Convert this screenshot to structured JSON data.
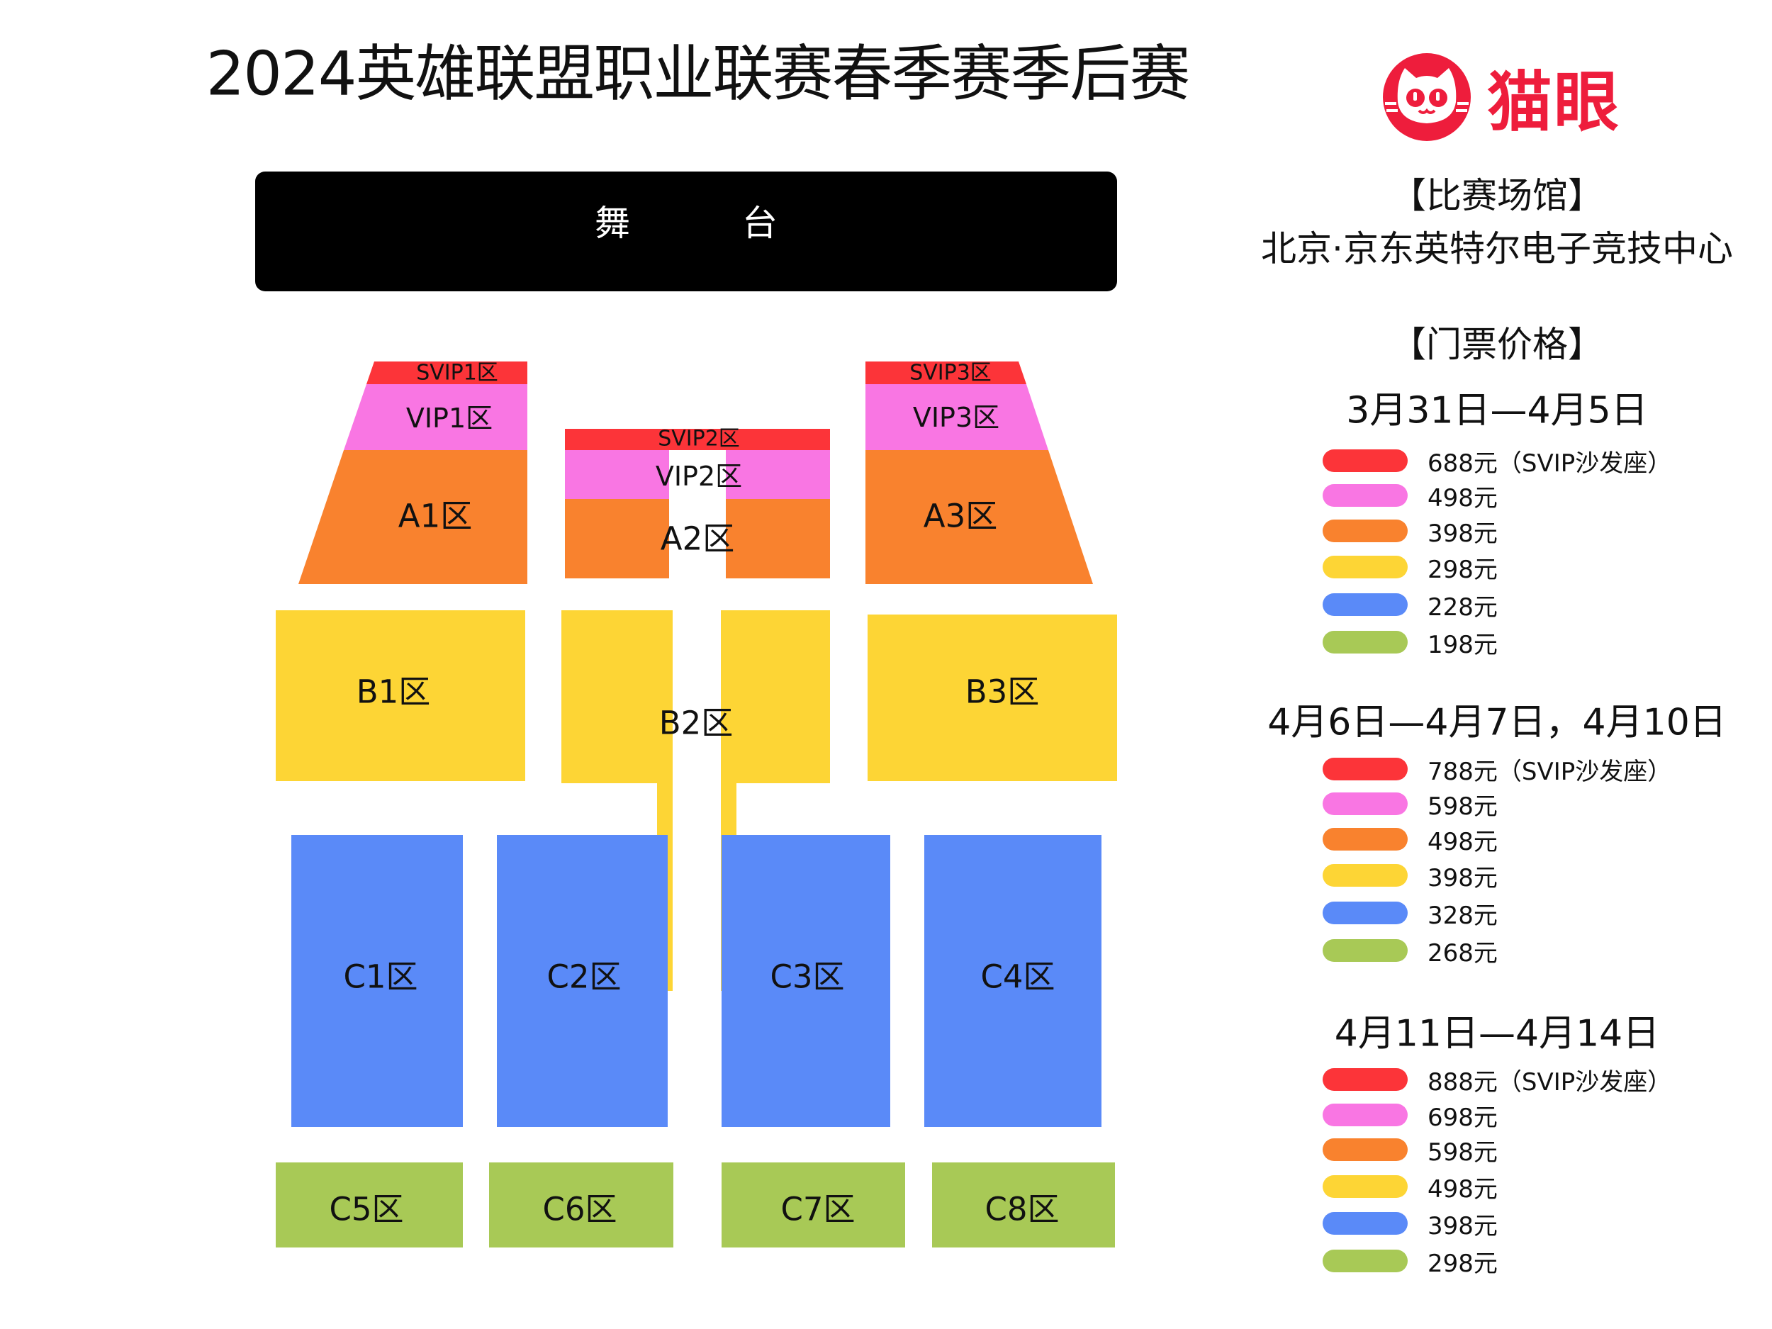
{
  "title": "2024英雄联盟职业联赛春季赛季后赛",
  "logo": {
    "text": "猫眼",
    "color": "#ee1d3c",
    "icon": "cat-face-icon"
  },
  "venue": {
    "heading": "【比赛场馆】",
    "name": "北京·京东英特尔电子竞技中心"
  },
  "stage": {
    "char1": "舞",
    "char2": "台"
  },
  "colors": {
    "svip": "#fc3439",
    "vip": "#f976e3",
    "a": "#f9822e",
    "b": "#fdd535",
    "c": "#5a8af8",
    "c_back": "#a8c956"
  },
  "sections": {
    "svip1": "SVIP1区",
    "vip1": "VIP1区",
    "a1": "A1区",
    "svip2": "SVIP2区",
    "vip2": "VIP2区",
    "a2": "A2区",
    "svip3": "SVIP3区",
    "vip3": "VIP3区",
    "a3": "A3区",
    "b1": "B1区",
    "b2": "B2区",
    "b3": "B3区",
    "c1": "C1区",
    "c2": "C2区",
    "c3": "C3区",
    "c4": "C4区",
    "c5": "C5区",
    "c6": "C6区",
    "c7": "C7区",
    "c8": "C8区"
  },
  "prices": {
    "heading": "【门票价格】",
    "periods": [
      {
        "dates": "3月31日—4月5日",
        "tiers": [
          "688元（SVIP沙发座）",
          "498元",
          "398元",
          "298元",
          "228元",
          "198元"
        ]
      },
      {
        "dates": "4月6日—4月7日，4月10日",
        "tiers": [
          "788元（SVIP沙发座）",
          "598元",
          "498元",
          "398元",
          "328元",
          "268元"
        ]
      },
      {
        "dates": "4月11日—4月14日",
        "tiers": [
          "888元（SVIP沙发座）",
          "698元",
          "598元",
          "498元",
          "398元",
          "298元"
        ]
      }
    ]
  }
}
